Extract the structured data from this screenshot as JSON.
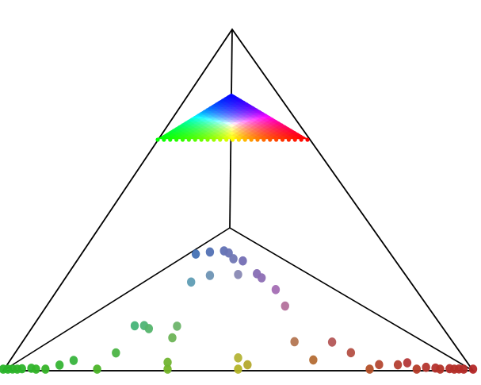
{
  "diagram": {
    "type": "ternary-simplex-projection",
    "line_color": "#000000",
    "vertex_colors": {
      "left": "#00ff00",
      "apex": "#0000ff",
      "right": "#ff0000"
    },
    "points": [
      [
        0.0,
        0.0,
        1.0
      ],
      [
        0.02,
        0.01,
        0.97
      ],
      [
        0.04,
        0.02,
        0.94
      ],
      [
        0.06,
        0.03,
        0.91
      ],
      [
        0.03,
        0.0,
        0.97
      ],
      [
        0.07,
        0.0,
        0.93
      ],
      [
        0.12,
        0.07,
        0.81
      ],
      [
        0.15,
        0.12,
        0.73
      ],
      [
        0.2,
        0.0,
        0.8
      ],
      [
        0.24,
        0.14,
        0.62
      ],
      [
        0.3,
        0.3,
        0.4
      ],
      [
        0.31,
        0.27,
        0.42
      ],
      [
        0.35,
        0.0,
        0.65
      ],
      [
        0.35,
        0.04,
        0.61
      ],
      [
        0.36,
        0.18,
        0.46
      ],
      [
        0.37,
        0.24,
        0.39
      ],
      [
        0.41,
        0.58,
        0.01
      ],
      [
        0.44,
        0.55,
        0.01
      ],
      [
        0.44,
        0.44,
        0.12
      ],
      [
        0.47,
        0.52,
        0.01
      ],
      [
        0.48,
        0.5,
        0.02
      ],
      [
        0.49,
        0.48,
        0.03
      ],
      [
        0.51,
        0.49,
        0.0
      ],
      [
        0.5,
        0.05,
        0.45
      ],
      [
        0.5,
        0.0,
        0.5
      ],
      [
        0.5,
        0.42,
        0.08
      ],
      [
        0.54,
        0.46,
        0.0
      ],
      [
        0.55,
        0.45,
        0.0
      ],
      [
        0.58,
        0.42,
        0.0
      ],
      [
        0.6,
        0.35,
        0.05
      ],
      [
        0.62,
        0.16,
        0.22
      ],
      [
        0.66,
        0.06,
        0.28
      ],
      [
        0.7,
        0.2,
        0.1
      ],
      [
        0.74,
        0.14,
        0.12
      ],
      [
        0.78,
        0.0,
        0.22
      ],
      [
        0.8,
        0.05,
        0.15
      ],
      [
        0.84,
        0.06,
        0.1
      ],
      [
        0.88,
        0.0,
        0.12
      ],
      [
        0.9,
        0.04,
        0.06
      ],
      [
        0.92,
        0.03,
        0.05
      ],
      [
        0.93,
        0.0,
        0.07
      ],
      [
        0.95,
        0.02,
        0.03
      ],
      [
        0.97,
        0.01,
        0.02
      ],
      [
        1.0,
        0.0,
        0.0
      ],
      [
        0.98,
        0.0,
        0.02
      ],
      [
        0.96,
        0.0,
        0.04
      ],
      [
        0.86,
        0.1,
        0.04
      ],
      [
        0.4,
        0.45,
        0.15
      ],
      [
        0.28,
        0.32,
        0.4
      ],
      [
        0.52,
        0.02,
        0.46
      ],
      [
        0.09,
        0.0,
        0.91
      ],
      [
        0.01,
        0.0,
        0.99
      ]
    ],
    "legend_resolution": 24
  }
}
